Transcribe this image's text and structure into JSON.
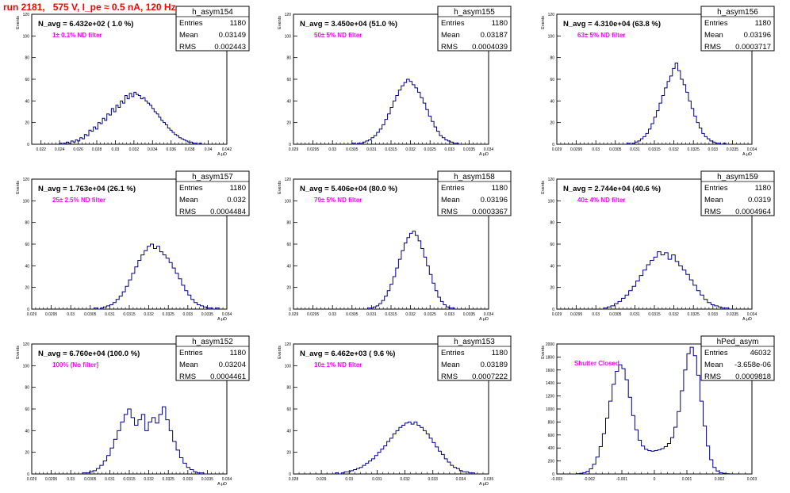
{
  "title": "run 2181,   575 V, I_pe ≈ 0.5 nA, 120 Hz",
  "colors": {
    "title": "#ff0000",
    "histogram": "#000080",
    "annotation": "#ff00ff"
  },
  "stats_labels": {
    "entries": "Entries",
    "mean": "Mean",
    "rms": "RMS"
  },
  "chart_data": [
    {
      "type": "bar",
      "name": "h_asym154",
      "label": "N_avg = 6.432e+02 ( 1.0 %)",
      "annotation": "1± 0.1% ND filter",
      "stats": {
        "entries": "1180",
        "mean": "0.03149",
        "rms": "0.002443"
      },
      "ylabel": "Events",
      "xlabel": "A μD",
      "xlim": [
        0.021,
        0.042
      ],
      "ylim": [
        0,
        120
      ],
      "xticks": [
        "0.022",
        "0.024",
        "0.026",
        "0.028",
        "0.03",
        "0.032",
        "0.034",
        "0.036",
        "0.038",
        "0.04",
        "0.042"
      ],
      "xtick_values": [
        0.022,
        0.024,
        0.026,
        0.028,
        0.03,
        0.032,
        0.034,
        0.036,
        0.038,
        0.04,
        0.042
      ],
      "yticks": [
        "0",
        "20",
        "40",
        "60",
        "80",
        "100",
        "120"
      ],
      "yticks_values": [
        0,
        20,
        40,
        60,
        80,
        100,
        120
      ],
      "bin_range": [
        0.024,
        0.0395
      ],
      "values": [
        1,
        0,
        1,
        2,
        1,
        3,
        2,
        4,
        3,
        6,
        5,
        9,
        8,
        13,
        12,
        16,
        14,
        20,
        19,
        24,
        22,
        28,
        27,
        33,
        30,
        36,
        34,
        40,
        38,
        45,
        42,
        47,
        44,
        48,
        46,
        45,
        42,
        43,
        40,
        38,
        36,
        33,
        30,
        28,
        25,
        22,
        20,
        18,
        15,
        13,
        11,
        9,
        8,
        6,
        5,
        4,
        3,
        2,
        2,
        1,
        1,
        0,
        1,
        0
      ]
    },
    {
      "type": "bar",
      "name": "h_asym155",
      "label": "N_avg = 3.450e+04 (51.0 %)",
      "annotation": "50± 5% ND filter",
      "stats": {
        "entries": "1180",
        "mean": "0.03187",
        "rms": "0.0004039"
      },
      "ylabel": "Events",
      "xlabel": "A μD",
      "xlim": [
        0.029,
        0.034
      ],
      "ylim": [
        0,
        120
      ],
      "xticks": [
        "0.029",
        "0.0295",
        "0.03",
        "0.0305",
        "0.031",
        "0.0315",
        "0.032",
        "0.0325",
        "0.033",
        "0.0335",
        "0.034"
      ],
      "xtick_values": [
        0.029,
        0.0295,
        0.03,
        0.0305,
        0.031,
        0.0315,
        0.032,
        0.0325,
        0.033,
        0.0335,
        0.034
      ],
      "yticks": [
        "0",
        "20",
        "40",
        "60",
        "80",
        "100",
        "120"
      ],
      "yticks_values": [
        0,
        20,
        40,
        60,
        80,
        100,
        120
      ],
      "bin_range": [
        0.0305,
        0.0333
      ],
      "values": [
        1,
        0,
        1,
        1,
        2,
        3,
        4,
        6,
        8,
        11,
        14,
        18,
        23,
        28,
        34,
        40,
        45,
        50,
        54,
        57,
        60,
        58,
        55,
        52,
        48,
        43,
        38,
        32,
        26,
        21,
        16,
        12,
        8,
        6,
        4,
        3,
        2,
        1,
        1,
        0
      ]
    },
    {
      "type": "bar",
      "name": "h_asym156",
      "label": "N_avg = 4.310e+04 (63.8 %)",
      "annotation": "63± 5% ND filter",
      "stats": {
        "entries": "1180",
        "mean": "0.03196",
        "rms": "0.0003717"
      },
      "ylabel": "Events",
      "xlabel": "A μD",
      "xlim": [
        0.029,
        0.034
      ],
      "ylim": [
        0,
        120
      ],
      "xticks": [
        "0.029",
        "0.0295",
        "0.03",
        "0.0305",
        "0.031",
        "0.0315",
        "0.032",
        "0.0325",
        "0.033",
        "0.0335",
        "0.034"
      ],
      "xtick_values": [
        0.029,
        0.0295,
        0.03,
        0.0305,
        0.031,
        0.0315,
        0.032,
        0.0325,
        0.033,
        0.0335,
        0.034
      ],
      "yticks": [
        "0",
        "20",
        "40",
        "60",
        "80",
        "100",
        "120"
      ],
      "yticks_values": [
        0,
        20,
        40,
        60,
        80,
        100,
        120
      ],
      "bin_range": [
        0.0308,
        0.0334
      ],
      "values": [
        1,
        0,
        1,
        2,
        3,
        5,
        7,
        10,
        14,
        19,
        25,
        31,
        38,
        45,
        52,
        58,
        63,
        70,
        75,
        68,
        60,
        55,
        48,
        40,
        33,
        26,
        20,
        15,
        10,
        7,
        5,
        3,
        2,
        1,
        1,
        0,
        1,
        0
      ]
    },
    {
      "type": "bar",
      "name": "h_asym157",
      "label": "N_avg = 1.763e+04 (26.1 %)",
      "annotation": "25± 2.5% ND filter",
      "stats": {
        "entries": "1180",
        "mean": "0.032",
        "rms": "0.0004484"
      },
      "ylabel": "Events",
      "xlabel": "A μD",
      "xlim": [
        0.029,
        0.034
      ],
      "ylim": [
        0,
        120
      ],
      "xticks": [
        "0.029",
        "0.0295",
        "0.03",
        "0.0305",
        "0.031",
        "0.0315",
        "0.032",
        "0.0325",
        "0.033",
        "0.0335",
        "0.034"
      ],
      "xtick_values": [
        0.029,
        0.0295,
        0.03,
        0.0305,
        0.031,
        0.0315,
        0.032,
        0.0325,
        0.033,
        0.0335,
        0.034
      ],
      "yticks": [
        "0",
        "20",
        "40",
        "60",
        "80",
        "100",
        "120"
      ],
      "yticks_values": [
        0,
        20,
        40,
        60,
        80,
        100,
        120
      ],
      "bin_range": [
        0.0306,
        0.0338
      ],
      "values": [
        1,
        0,
        1,
        2,
        3,
        4,
        6,
        9,
        12,
        16,
        21,
        27,
        33,
        39,
        45,
        50,
        54,
        58,
        60,
        56,
        58,
        53,
        50,
        47,
        43,
        38,
        33,
        28,
        22,
        17,
        13,
        9,
        6,
        4,
        3,
        2,
        1,
        1,
        0,
        1
      ]
    },
    {
      "type": "bar",
      "name": "h_asym158",
      "label": "N_avg = 5.406e+04 (80.0 %)",
      "annotation": "79± 5% ND filter",
      "stats": {
        "entries": "1180",
        "mean": "0.03196",
        "rms": "0.0003367"
      },
      "ylabel": "Events",
      "xlabel": "A μD",
      "xlim": [
        0.029,
        0.034
      ],
      "ylim": [
        0,
        120
      ],
      "xticks": [
        "0.029",
        "0.0295",
        "0.03",
        "0.0305",
        "0.031",
        "0.0315",
        "0.032",
        "0.0325",
        "0.033",
        "0.0335",
        "0.034"
      ],
      "xtick_values": [
        0.029,
        0.0295,
        0.03,
        0.0305,
        0.031,
        0.0315,
        0.032,
        0.0325,
        0.033,
        0.0335,
        0.034
      ],
      "yticks": [
        "0",
        "20",
        "40",
        "60",
        "80",
        "100",
        "120"
      ],
      "yticks_values": [
        0,
        20,
        40,
        60,
        80,
        100,
        120
      ],
      "bin_range": [
        0.0309,
        0.0332
      ],
      "values": [
        1,
        1,
        2,
        3,
        5,
        8,
        12,
        17,
        23,
        30,
        38,
        46,
        54,
        61,
        66,
        70,
        72,
        68,
        63,
        56,
        48,
        40,
        32,
        24,
        17,
        11,
        7,
        4,
        2,
        1,
        1,
        0
      ]
    },
    {
      "type": "bar",
      "name": "h_asym159",
      "label": "N_avg = 2.744e+04 (40.6 %)",
      "annotation": "40± 4% ND filter",
      "stats": {
        "entries": "1180",
        "mean": "0.0319",
        "rms": "0.0004964"
      },
      "ylabel": "Events",
      "xlabel": "A μD",
      "xlim": [
        0.029,
        0.034
      ],
      "ylim": [
        0,
        120
      ],
      "xticks": [
        "0.029",
        "0.0295",
        "0.03",
        "0.0305",
        "0.031",
        "0.0315",
        "0.032",
        "0.0325",
        "0.033",
        "0.0335",
        "0.034"
      ],
      "xtick_values": [
        0.029,
        0.0295,
        0.03,
        0.0305,
        0.031,
        0.0315,
        0.032,
        0.0325,
        0.033,
        0.0335,
        0.034
      ],
      "yticks": [
        "0",
        "20",
        "40",
        "60",
        "80",
        "100",
        "120"
      ],
      "yticks_values": [
        0,
        20,
        40,
        60,
        80,
        100,
        120
      ],
      "bin_range": [
        0.0302,
        0.0335
      ],
      "values": [
        1,
        2,
        3,
        5,
        7,
        10,
        13,
        17,
        21,
        26,
        31,
        36,
        41,
        45,
        48,
        53,
        50,
        52,
        46,
        50,
        44,
        40,
        36,
        32,
        27,
        22,
        17,
        13,
        9,
        6,
        4,
        3,
        2,
        1,
        1,
        0
      ]
    },
    {
      "type": "bar",
      "name": "h_asym152",
      "label": "N_avg = 6.760e+04 (100.0 %)",
      "annotation": "100% (No filter)",
      "stats": {
        "entries": "1180",
        "mean": "0.03204",
        "rms": "0.0004461"
      },
      "ylabel": "Events",
      "xlabel": "A μD",
      "xlim": [
        0.029,
        0.034
      ],
      "ylim": [
        0,
        120
      ],
      "xticks": [
        "0.029",
        "0.0295",
        "0.03",
        "0.0305",
        "0.031",
        "0.0315",
        "0.032",
        "0.0325",
        "0.033",
        "0.0335",
        "0.034"
      ],
      "xtick_values": [
        0.029,
        0.0295,
        0.03,
        0.0305,
        0.031,
        0.0315,
        0.032,
        0.0325,
        0.033,
        0.0335,
        0.034
      ],
      "yticks": [
        "0",
        "20",
        "40",
        "60",
        "80",
        "100",
        "120"
      ],
      "yticks_values": [
        0,
        20,
        40,
        60,
        80,
        100,
        120
      ],
      "bin_range": [
        0.0303,
        0.0335
      ],
      "values": [
        1,
        1,
        2,
        3,
        5,
        8,
        12,
        17,
        24,
        32,
        40,
        48,
        55,
        60,
        52,
        45,
        50,
        55,
        40,
        48,
        52,
        47,
        55,
        62,
        50,
        40,
        30,
        22,
        15,
        10,
        6,
        4,
        2,
        1,
        1,
        0
      ]
    },
    {
      "type": "bar",
      "name": "h_asym153",
      "label": "N_avg = 6.462e+03 ( 9.6 %)",
      "annotation": "10± 1% ND filter",
      "stats": {
        "entries": "1180",
        "mean": "0.03189",
        "rms": "0.0007222"
      },
      "ylabel": "Events",
      "xlabel": "A μD",
      "xlim": [
        0.028,
        0.035
      ],
      "ylim": [
        0,
        120
      ],
      "xticks": [
        "0.028",
        "0.029",
        "0.03",
        "0.031",
        "0.032",
        "0.033",
        "0.034",
        "0.035"
      ],
      "xtick_values": [
        0.028,
        0.029,
        0.03,
        0.031,
        0.032,
        0.033,
        0.034,
        0.035
      ],
      "yticks": [
        "0",
        "20",
        "40",
        "60",
        "80",
        "100",
        "120"
      ],
      "yticks_values": [
        0,
        20,
        40,
        60,
        80,
        100,
        120
      ],
      "bin_range": [
        0.0295,
        0.0345
      ],
      "values": [
        1,
        0,
        1,
        2,
        2,
        3,
        4,
        5,
        6,
        8,
        10,
        12,
        14,
        17,
        20,
        23,
        26,
        30,
        33,
        37,
        40,
        43,
        45,
        47,
        48,
        46,
        48,
        45,
        43,
        40,
        37,
        33,
        29,
        25,
        21,
        18,
        14,
        11,
        8,
        6,
        5,
        3,
        2,
        2,
        1,
        1
      ]
    },
    {
      "type": "bar",
      "name": "hPed_asym",
      "label": "",
      "annotation": "Shutter Closed",
      "stats": {
        "entries": "46032",
        "mean": "-3.658e-06",
        "rms": "0.0009818"
      },
      "ylabel": "Events",
      "xlabel": "",
      "xlim": [
        -0.003,
        0.003
      ],
      "ylim": [
        0,
        2000
      ],
      "xticks": [
        "-0.003",
        "-0.002",
        "-0.001",
        "0",
        "0.001",
        "0.002",
        "0.003"
      ],
      "xtick_values": [
        -0.003,
        -0.002,
        -0.001,
        0,
        0.001,
        0.002,
        0.003
      ],
      "yticks": [
        "0",
        "200",
        "400",
        "600",
        "800",
        "1000",
        "1200",
        "1400",
        "1600",
        "1800",
        "2000"
      ],
      "yticks_values": [
        0,
        200,
        400,
        600,
        800,
        1000,
        1200,
        1400,
        1600,
        1800,
        2000
      ],
      "bin_range": [
        -0.0024,
        0.0024
      ],
      "values": [
        5,
        10,
        20,
        40,
        80,
        150,
        260,
        420,
        620,
        860,
        1120,
        1380,
        1580,
        1680,
        1620,
        1450,
        1180,
        900,
        680,
        520,
        430,
        380,
        360,
        350,
        360,
        370,
        390,
        420,
        470,
        560,
        720,
        960,
        1280,
        1600,
        1850,
        1950,
        1820,
        1520,
        1120,
        740,
        430,
        220,
        100,
        45,
        20,
        10,
        5,
        2
      ]
    }
  ]
}
